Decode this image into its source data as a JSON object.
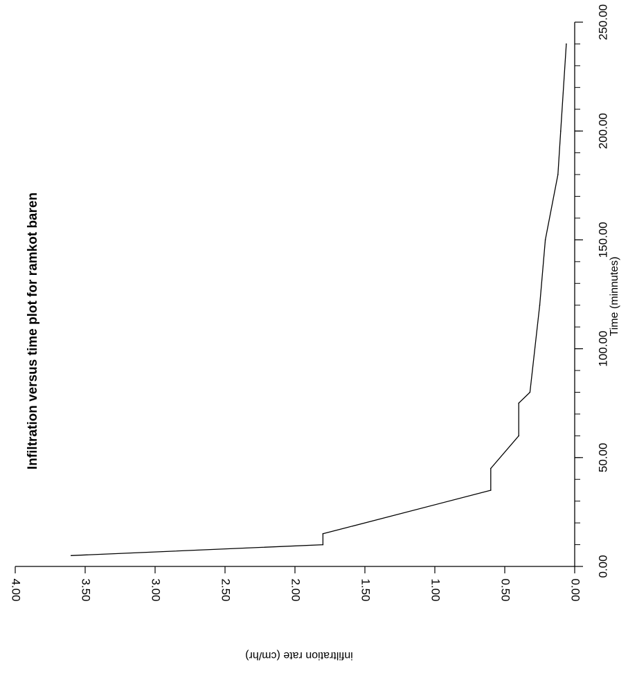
{
  "chart_data": {
    "type": "line",
    "title": "Infiltration versus time plot for ramkot baren",
    "xlabel": "Time (minnutes)",
    "ylabel": "infiltration rate (cm/hr)",
    "xlim": [
      0,
      250
    ],
    "ylim": [
      0,
      4
    ],
    "x_ticks": [
      "0.00",
      "50.00",
      "100.00",
      "150.00",
      "200.00",
      "250.00"
    ],
    "y_ticks": [
      "0.00",
      "0.50",
      "1.00",
      "1.50",
      "2.00",
      "2.50",
      "3.00",
      "3.50",
      "4.00"
    ],
    "x_minor_step": 10,
    "grid": false,
    "orientation": "rotated 90° clockwise (time axis runs top-to-bottom on the right edge)",
    "series": [
      {
        "x": [
          5,
          10,
          15,
          35,
          45,
          60,
          75,
          80,
          120,
          150,
          180,
          200,
          240
        ],
        "y": [
          3.6,
          1.8,
          1.8,
          0.6,
          0.6,
          0.4,
          0.4,
          0.32,
          0.25,
          0.21,
          0.12,
          0.1,
          0.06
        ]
      }
    ]
  }
}
